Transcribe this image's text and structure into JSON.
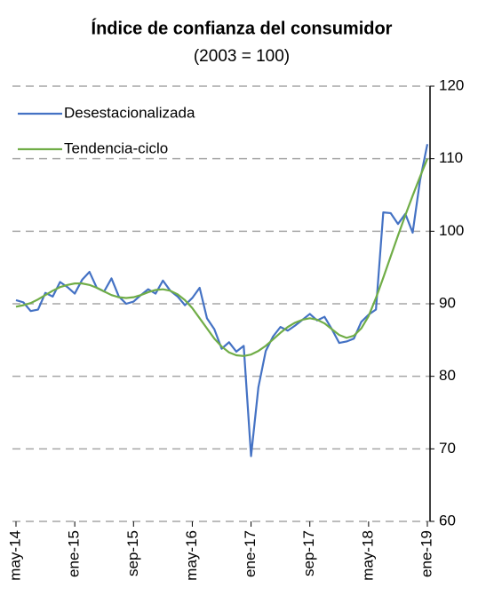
{
  "chart_data": {
    "type": "line",
    "title": "Índice de confianza del consumidor",
    "subtitle": "(2003 = 100)",
    "categories": [
      "may-14",
      null,
      null,
      null,
      null,
      null,
      null,
      null,
      "ene-15",
      null,
      null,
      null,
      null,
      null,
      null,
      null,
      "sep-15",
      null,
      null,
      null,
      null,
      null,
      null,
      null,
      "may-16",
      null,
      null,
      null,
      null,
      null,
      null,
      null,
      "ene-17",
      null,
      null,
      null,
      null,
      null,
      null,
      null,
      "sep-17",
      null,
      null,
      null,
      null,
      null,
      null,
      null,
      "may-18",
      null,
      null,
      null,
      null,
      null,
      null,
      null,
      "ene-19"
    ],
    "series": [
      {
        "name": "Desestacionalizada",
        "color": "#4472c4",
        "values": [
          90.5,
          90.2,
          89,
          89.2,
          91.5,
          91,
          93,
          92.3,
          91.4,
          93.3,
          94.4,
          92.2,
          91.7,
          93.5,
          91,
          90,
          90.3,
          91.2,
          92,
          91.4,
          93.2,
          91.8,
          91,
          89.8,
          90.8,
          92.2,
          88,
          86.5,
          83.8,
          84.7,
          83.4,
          84.2,
          69,
          78.5,
          83.5,
          85.5,
          86.8,
          86.3,
          87,
          87.8,
          88.6,
          87.7,
          88.2,
          86.5,
          84.6,
          84.8,
          85.2,
          87.5,
          88.5,
          89.2,
          102.6,
          102.5,
          101,
          102.4,
          99.8,
          107,
          112
        ]
      },
      {
        "name": "Tendencia-ciclo",
        "color": "#70ad47",
        "values": [
          89.6,
          89.8,
          90.1,
          90.6,
          91.2,
          91.8,
          92.3,
          92.6,
          92.8,
          92.8,
          92.6,
          92.2,
          91.7,
          91.2,
          90.9,
          90.8,
          90.9,
          91.2,
          91.6,
          91.9,
          92.0,
          91.8,
          91.3,
          90.5,
          89.4,
          88.0,
          86.6,
          85.2,
          84.1,
          83.3,
          82.9,
          82.8,
          83.0,
          83.5,
          84.2,
          85.1,
          86.0,
          86.8,
          87.4,
          87.8,
          88.0,
          87.8,
          87.3,
          86.5,
          85.7,
          85.3,
          85.6,
          86.6,
          88.3,
          90.8,
          93.6,
          96.5,
          99.4,
          102.2,
          104.9,
          107.5,
          110.0
        ]
      }
    ],
    "ylim": [
      60,
      120
    ],
    "yticks": [
      60,
      70,
      80,
      90,
      100,
      110,
      120
    ],
    "grid": true,
    "legend": "upper left"
  }
}
